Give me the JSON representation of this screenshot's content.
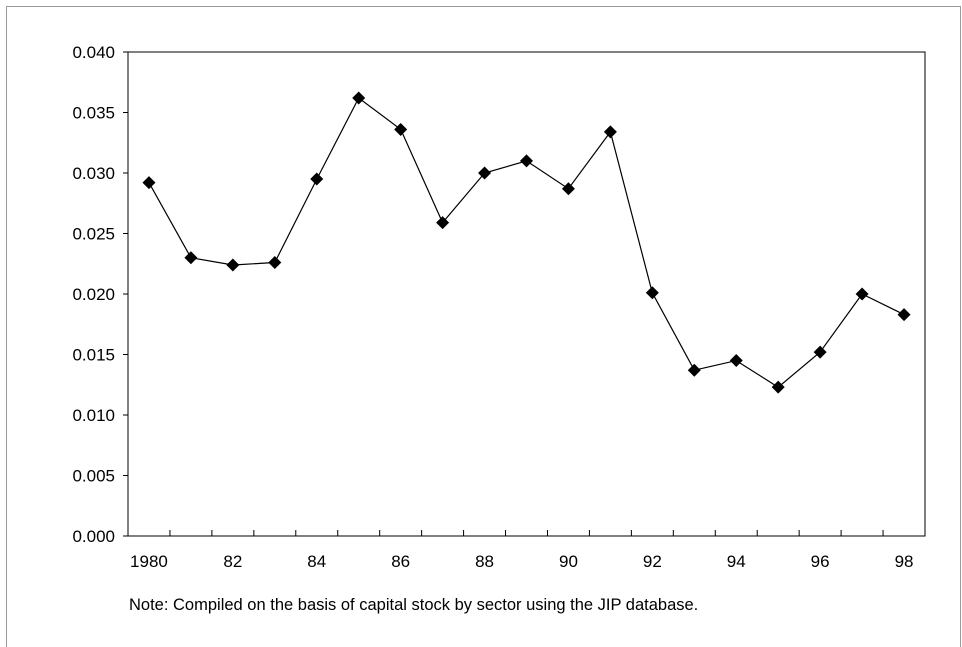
{
  "chart_data": {
    "type": "line",
    "title": "",
    "xlabel": "",
    "ylabel": "",
    "x": [
      1980,
      1981,
      1982,
      1983,
      1984,
      1985,
      1986,
      1987,
      1988,
      1989,
      1990,
      1991,
      1992,
      1993,
      1994,
      1995,
      1996,
      1997,
      1998
    ],
    "x_tick_labels": [
      "1980",
      "82",
      "84",
      "86",
      "88",
      "90",
      "92",
      "94",
      "96",
      "98"
    ],
    "x_tick_values": [
      1980,
      1982,
      1984,
      1986,
      1988,
      1990,
      1992,
      1994,
      1996,
      1998
    ],
    "y_tick_labels": [
      "0.000",
      "0.005",
      "0.010",
      "0.015",
      "0.020",
      "0.025",
      "0.030",
      "0.035",
      "0.040"
    ],
    "ylim": [
      0,
      0.04
    ],
    "grid": false,
    "marker": "diamond",
    "series_color": "#000000",
    "series": [
      {
        "values": [
          0.0292,
          0.023,
          0.0224,
          0.0226,
          0.0295,
          0.0362,
          0.0336,
          0.0259,
          0.03,
          0.031,
          0.0287,
          0.0334,
          0.0201,
          0.0137,
          0.0145,
          0.0123,
          0.0152,
          0.02,
          0.0183
        ]
      }
    ]
  },
  "note": "Note: Compiled on the basis of capital stock by sector using the JIP database."
}
